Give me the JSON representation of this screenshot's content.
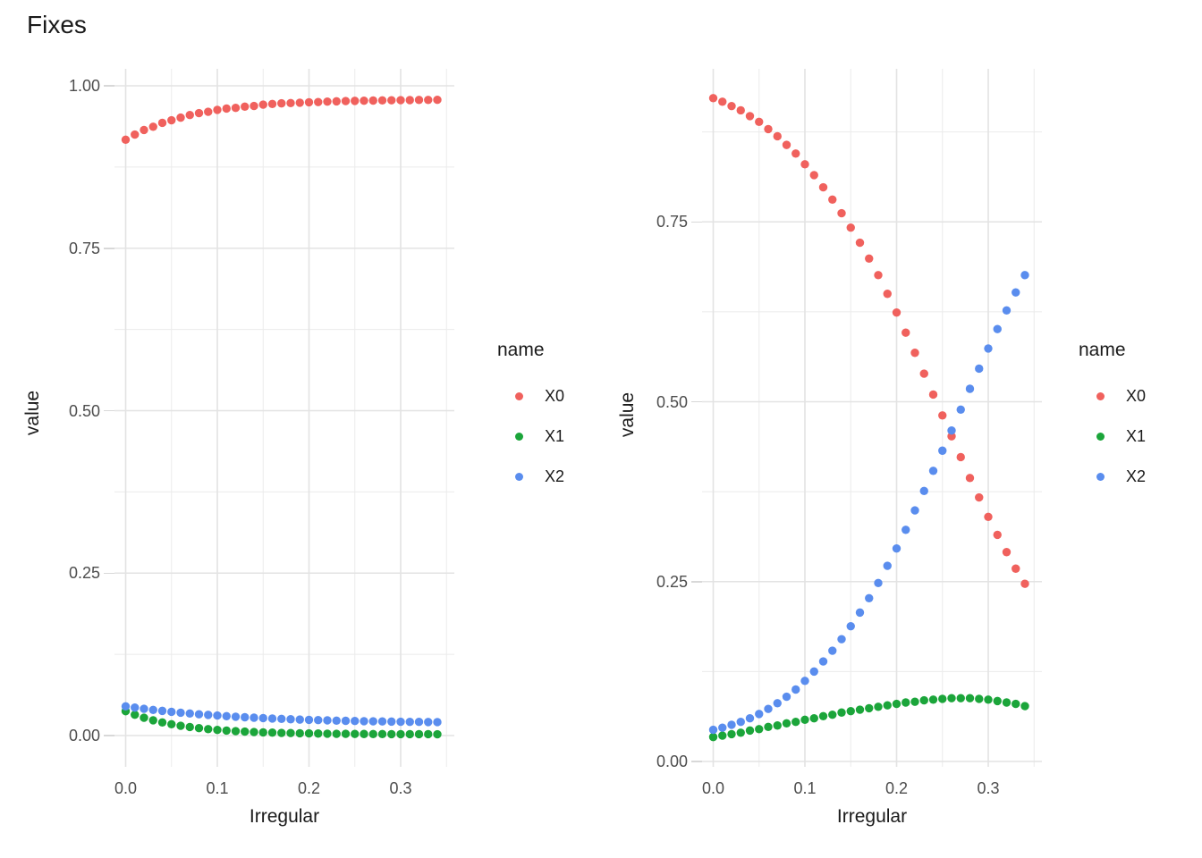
{
  "title": "Fixes",
  "colors": {
    "red": "#F0615D",
    "green": "#1BA53A",
    "blue": "#5A8DEE",
    "grid_major": "#E3E3E3",
    "grid_minor": "#EBEBEB",
    "tick_mark": "#D8D8D8",
    "tick_label": "#4D4D4D",
    "text": "#1A1A1A",
    "background": "#FFFFFF"
  },
  "legend": {
    "title": "name",
    "items": [
      {
        "label": "X0",
        "color": "#F0615D"
      },
      {
        "label": "X1",
        "color": "#1BA53A"
      },
      {
        "label": "X2",
        "color": "#5A8DEE"
      }
    ]
  },
  "chart_data": [
    {
      "type": "scatter",
      "facet": "left",
      "xlabel": "Irregular",
      "ylabel": "value",
      "grid": true,
      "legend_position": "right",
      "xlim": [
        -0.0175,
        0.3585
      ],
      "ylim": [
        -0.048,
        1.026
      ],
      "x_ticks": [
        0.0,
        0.1,
        0.2,
        0.3
      ],
      "x_tick_labels": [
        "0.0",
        "0.1",
        "0.2",
        "0.3"
      ],
      "x_minor": [
        0.05,
        0.15,
        0.25,
        0.35
      ],
      "y_ticks": [
        0.0,
        0.25,
        0.5,
        0.75,
        1.0
      ],
      "y_tick_labels": [
        "0.00",
        "0.25",
        "0.50",
        "0.75",
        "1.00"
      ],
      "y_minor": [
        0.125,
        0.375,
        0.625,
        0.875
      ],
      "x": [
        0.0,
        0.01,
        0.02,
        0.03,
        0.04,
        0.05,
        0.06,
        0.07,
        0.08,
        0.09,
        0.1,
        0.11,
        0.12,
        0.13,
        0.14,
        0.15,
        0.16,
        0.17,
        0.18,
        0.19,
        0.2,
        0.21,
        0.22,
        0.23,
        0.24,
        0.25,
        0.26,
        0.27,
        0.28,
        0.29,
        0.3,
        0.31,
        0.32,
        0.33,
        0.34
      ],
      "series": [
        {
          "name": "X0",
          "color": "#F0615D",
          "values": [
            0.917,
            0.925,
            0.932,
            0.937,
            0.943,
            0.947,
            0.951,
            0.955,
            0.958,
            0.96,
            0.963,
            0.965,
            0.966,
            0.968,
            0.969,
            0.971,
            0.972,
            0.973,
            0.9734,
            0.974,
            0.9747,
            0.975,
            0.9757,
            0.9761,
            0.9765,
            0.9768,
            0.9771,
            0.9773,
            0.9775,
            0.9777,
            0.9779,
            0.978,
            0.9782,
            0.9783,
            0.9784
          ]
        },
        {
          "name": "X1",
          "color": "#1BA53A",
          "values": [
            0.0375,
            0.0321,
            0.0274,
            0.0235,
            0.0202,
            0.0174,
            0.0151,
            0.0131,
            0.0114,
            0.0099,
            0.0087,
            0.0077,
            0.0068,
            0.0061,
            0.0054,
            0.0049,
            0.0045,
            0.0041,
            0.0038,
            0.0035,
            0.0033,
            0.0031,
            0.0029,
            0.0027,
            0.0026,
            0.0025,
            0.0024,
            0.0023,
            0.0023,
            0.0022,
            0.0022,
            0.0021,
            0.0021,
            0.0021,
            0.002
          ]
        },
        {
          "name": "X2",
          "color": "#5A8DEE",
          "values": [
            0.045,
            0.043,
            0.0412,
            0.0395,
            0.038,
            0.0365,
            0.0352,
            0.034,
            0.0328,
            0.0318,
            0.0308,
            0.0299,
            0.029,
            0.0282,
            0.0275,
            0.0269,
            0.0262,
            0.0257,
            0.0251,
            0.0246,
            0.0242,
            0.0238,
            0.0234,
            0.023,
            0.0227,
            0.0224,
            0.0221,
            0.0219,
            0.0217,
            0.0215,
            0.0213,
            0.0211,
            0.021,
            0.0208,
            0.0207
          ]
        }
      ]
    },
    {
      "type": "scatter",
      "facet": "right",
      "xlabel": "Irregular",
      "ylabel": "value",
      "grid": true,
      "legend_position": "right",
      "xlim": [
        -0.0175,
        0.3585
      ],
      "ylim": [
        -0.008,
        0.963
      ],
      "x_ticks": [
        0.0,
        0.1,
        0.2,
        0.3
      ],
      "x_tick_labels": [
        "0.0",
        "0.1",
        "0.2",
        "0.3"
      ],
      "x_minor": [
        0.05,
        0.15,
        0.25,
        0.35
      ],
      "y_ticks": [
        0.0,
        0.25,
        0.5,
        0.75
      ],
      "y_tick_labels": [
        "0.00",
        "0.25",
        "0.50",
        "0.75"
      ],
      "y_minor": [
        0.125,
        0.375,
        0.625,
        0.875
      ],
      "x": [
        0.0,
        0.01,
        0.02,
        0.03,
        0.04,
        0.05,
        0.06,
        0.07,
        0.08,
        0.09,
        0.1,
        0.11,
        0.12,
        0.13,
        0.14,
        0.15,
        0.16,
        0.17,
        0.18,
        0.19,
        0.2,
        0.21,
        0.22,
        0.23,
        0.24,
        0.25,
        0.26,
        0.27,
        0.28,
        0.29,
        0.3,
        0.31,
        0.32,
        0.33,
        0.34
      ],
      "series": [
        {
          "name": "X0",
          "color": "#F0615D",
          "values": [
            0.922,
            0.917,
            0.911,
            0.905,
            0.897,
            0.889,
            0.879,
            0.869,
            0.857,
            0.845,
            0.83,
            0.815,
            0.798,
            0.781,
            0.762,
            0.742,
            0.721,
            0.699,
            0.676,
            0.65,
            0.624,
            0.596,
            0.568,
            0.539,
            0.51,
            0.481,
            0.452,
            0.423,
            0.394,
            0.367,
            0.34,
            0.315,
            0.291,
            0.268,
            0.247
          ]
        },
        {
          "name": "X1",
          "color": "#1BA53A",
          "values": [
            0.034,
            0.036,
            0.038,
            0.04,
            0.043,
            0.045,
            0.048,
            0.05,
            0.053,
            0.055,
            0.058,
            0.06,
            0.063,
            0.065,
            0.068,
            0.07,
            0.072,
            0.074,
            0.076,
            0.078,
            0.08,
            0.082,
            0.083,
            0.085,
            0.086,
            0.087,
            0.088,
            0.088,
            0.088,
            0.087,
            0.086,
            0.084,
            0.082,
            0.08,
            0.077
          ]
        },
        {
          "name": "X2",
          "color": "#5A8DEE",
          "values": [
            0.044,
            0.047,
            0.051,
            0.055,
            0.06,
            0.066,
            0.073,
            0.081,
            0.09,
            0.1,
            0.112,
            0.125,
            0.139,
            0.154,
            0.17,
            0.188,
            0.207,
            0.227,
            0.248,
            0.272,
            0.296,
            0.322,
            0.349,
            0.376,
            0.404,
            0.432,
            0.46,
            0.489,
            0.518,
            0.546,
            0.574,
            0.601,
            0.627,
            0.652,
            0.676
          ]
        }
      ]
    }
  ]
}
